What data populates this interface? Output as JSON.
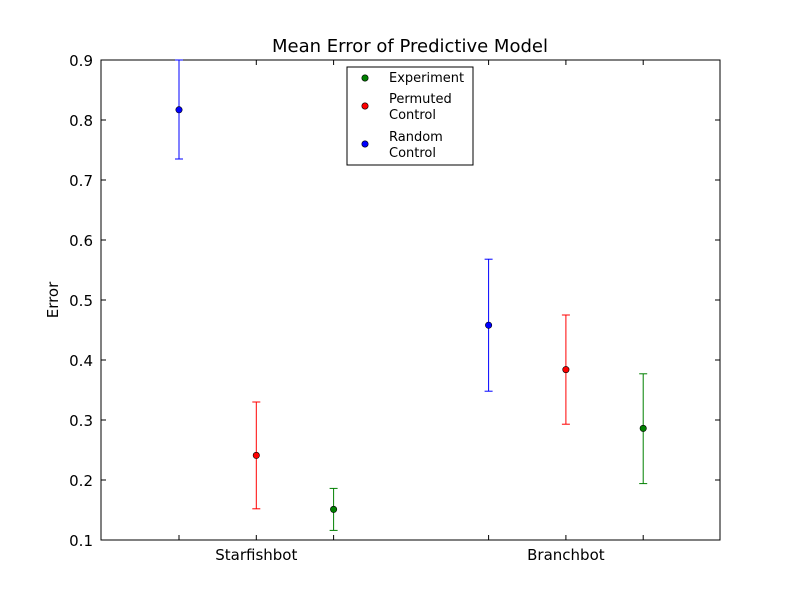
{
  "chart_data": {
    "type": "scatter",
    "title": "Mean Error of Predictive Model",
    "xlabel": "",
    "ylabel": "Error",
    "ylim": [
      0.1,
      0.9
    ],
    "yticks": [
      "0.1",
      "0.2",
      "0.3",
      "0.4",
      "0.5",
      "0.6",
      "0.7",
      "0.8",
      "0.9"
    ],
    "categories": [
      "Starfishbot",
      "Branchbot"
    ],
    "grid": false,
    "legend_position": "top-center",
    "series": [
      {
        "name": "Random\nControl",
        "color": "#0000ff",
        "points": [
          {
            "category": "Starfishbot",
            "mean": 0.817,
            "low": 0.735,
            "high": 0.9
          },
          {
            "category": "Branchbot",
            "mean": 0.458,
            "low": 0.348,
            "high": 0.568
          }
        ]
      },
      {
        "name": "Permuted\nControl",
        "color": "#ff0000",
        "points": [
          {
            "category": "Starfishbot",
            "mean": 0.241,
            "low": 0.152,
            "high": 0.33
          },
          {
            "category": "Branchbot",
            "mean": 0.384,
            "low": 0.293,
            "high": 0.475
          }
        ]
      },
      {
        "name": "Experiment",
        "color": "#008000",
        "points": [
          {
            "category": "Starfishbot",
            "mean": 0.151,
            "low": 0.116,
            "high": 0.186
          },
          {
            "category": "Branchbot",
            "mean": 0.286,
            "low": 0.194,
            "high": 0.377
          }
        ]
      }
    ],
    "legend_order": [
      "Experiment",
      "Permuted\nControl",
      "Random\nControl"
    ]
  }
}
